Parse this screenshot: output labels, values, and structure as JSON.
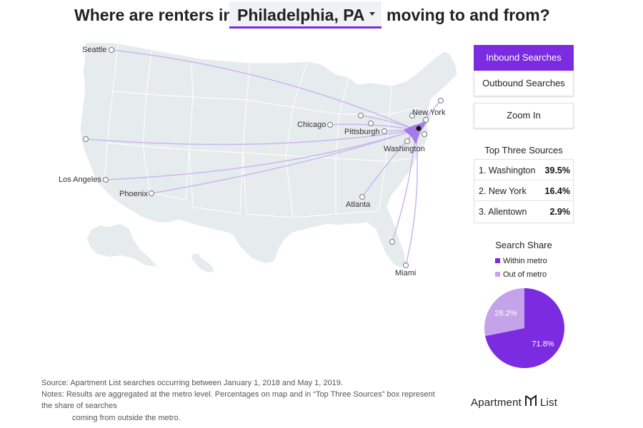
{
  "header": {
    "title_prefix": "Where are renters in",
    "selected_city": "Philadelphia, PA",
    "title_suffix": "moving to and from?"
  },
  "map": {
    "target_city": "Philadelphia",
    "labeled_cities": [
      "Seattle",
      "Chicago",
      "Pittsburgh",
      "New York",
      "Washington",
      "Los Angeles",
      "Phoenix",
      "Atlanta",
      "Miami"
    ],
    "land_color": "#e6ecee",
    "arc_color": "#c9b6ee",
    "target_color": "#9b6ce8"
  },
  "controls": {
    "inbound_label": "Inbound Searches",
    "outbound_label": "Outbound Searches",
    "zoom_label": "Zoom In",
    "active_mode": "inbound"
  },
  "top_three": {
    "title": "Top Three Sources",
    "rows": [
      {
        "name": "1. Washington",
        "pct": "39.5%"
      },
      {
        "name": "2. New York",
        "pct": "16.4%"
      },
      {
        "name": "3. Allentown",
        "pct": "2.9%"
      }
    ]
  },
  "search_share": {
    "title": "Search Share",
    "legend": [
      {
        "label": "Within metro",
        "color": "#7b2be0"
      },
      {
        "label": "Out of metro",
        "color": "#c4a3ea"
      }
    ],
    "slices": [
      {
        "label": "71.8%",
        "value": 71.8,
        "color": "#7b2be0"
      },
      {
        "label": "28.2%",
        "value": 28.2,
        "color": "#c4a3ea"
      }
    ]
  },
  "footer": {
    "source": "Source: Apartment List searches occurring between January 1, 2018 and May 1, 2019.",
    "notes_line1": "Notes:    Results are aggregated at the metro level. Percentages on map and in “Top Three Sources” box represent",
    "notes_line2": "the share of searches",
    "notes_line3": "coming from outside the metro.",
    "logo_left": "Apartment",
    "logo_right": "List"
  }
}
